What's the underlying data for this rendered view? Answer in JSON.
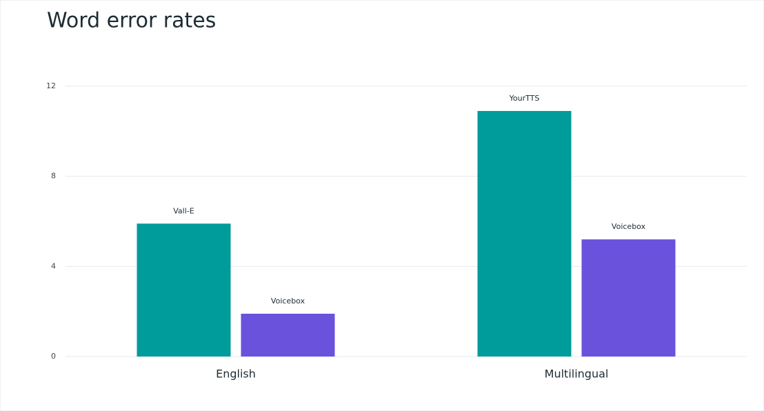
{
  "chart_data": {
    "type": "bar",
    "title": "Word error rates",
    "categories": [
      "English",
      "Multilingual"
    ],
    "series": [
      {
        "color": "#009b9b",
        "bar_labels": [
          "Vall-E",
          "YourTTS"
        ],
        "values": [
          5.9,
          10.9
        ]
      },
      {
        "color": "#6a52dc",
        "bar_labels": [
          "Voicebox",
          "Voicebox"
        ],
        "values": [
          1.9,
          5.2
        ]
      }
    ],
    "ylim": [
      0,
      12
    ],
    "yticks": [
      0,
      4,
      8,
      12
    ],
    "grid": true
  }
}
